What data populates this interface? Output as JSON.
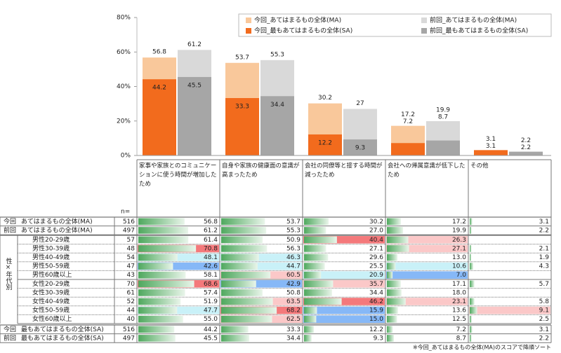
{
  "chart_data": {
    "type": "bar",
    "categories": [
      "家事や家族とのコミュニケーションに使う時間が増加したため",
      "自身や家族の健康面の意識が高まったため",
      "会社の同僚等と接する時間が減ったため",
      "会社への帰属意識が低下したため",
      "その他"
    ],
    "series": [
      {
        "name": "今回_あてはまるもの全体(MA)",
        "color": "#f9c89b",
        "values": [
          56.8,
          53.7,
          30.2,
          17.2,
          3.1
        ]
      },
      {
        "name": "前回_あてはまるもの全体(MA)",
        "color": "#d9d9d9",
        "values": [
          61.2,
          55.3,
          27.0,
          19.9,
          2.2
        ]
      },
      {
        "name": "今回_最もあてはまるもの全体(SA)",
        "color": "#f26b1d",
        "values": [
          44.2,
          33.3,
          12.2,
          7.2,
          3.1
        ]
      },
      {
        "name": "前回_最もあてはまるもの全体(SA)",
        "color": "#a6a6a6",
        "values": [
          45.5,
          34.4,
          9.3,
          8.7,
          2.2
        ]
      }
    ],
    "ylim": [
      0,
      80
    ],
    "yticks": [
      {
        "value": 0,
        "label": "0%"
      },
      {
        "value": 20,
        "label": "20%"
      },
      {
        "value": 40,
        "label": "40%"
      },
      {
        "value": 60,
        "label": "60%"
      },
      {
        "value": 80,
        "label": "80%"
      }
    ],
    "legend": "top-right"
  },
  "table": {
    "n_header": "n=",
    "group_label": "性×年代別",
    "rows": [
      {
        "group": "今回",
        "label": "あてはまるもの全体(MA)",
        "n": 516,
        "values": [
          56.8,
          53.7,
          30.2,
          17.2,
          3.1
        ],
        "value_labels": [
          "56.8",
          "53.7",
          "30.2",
          "17.2",
          "3.1"
        ]
      },
      {
        "group": "前回",
        "label": "あてはまるもの全体(MA)",
        "n": 497,
        "values": [
          61.2,
          55.3,
          27.0,
          19.9,
          2.2
        ],
        "value_labels": [
          "61.2",
          "55.3",
          "27.0",
          "19.9",
          "2.2"
        ]
      },
      {
        "label": "男性20-29歳",
        "n": 57,
        "values": [
          61.4,
          50.9,
          40.4,
          26.3,
          null
        ],
        "value_labels": [
          "61.4",
          "50.9",
          "40.4",
          "26.3",
          null
        ]
      },
      {
        "label": "男性30-39歳",
        "n": 48,
        "values": [
          70.8,
          56.3,
          27.1,
          27.1,
          2.1
        ],
        "value_labels": [
          "70.8",
          "56.3",
          "27.1",
          "27.1",
          "2.1"
        ]
      },
      {
        "label": "男性40-49歳",
        "n": 54,
        "values": [
          48.1,
          46.3,
          29.6,
          13.0,
          1.9
        ],
        "value_labels": [
          "48.1",
          "46.3",
          "29.6",
          "13.0",
          "1.9"
        ]
      },
      {
        "label": "男性50-59歳",
        "n": 47,
        "values": [
          42.6,
          44.7,
          25.5,
          10.6,
          4.3
        ],
        "value_labels": [
          "42.6",
          "44.7",
          "25.5",
          "10.6",
          "4.3"
        ]
      },
      {
        "label": "男性60歳以上",
        "n": 43,
        "values": [
          58.1,
          60.5,
          20.9,
          7.0,
          null
        ],
        "value_labels": [
          "58.1",
          "60.5",
          "20.9",
          "7.0",
          null
        ]
      },
      {
        "label": "女性20-29歳",
        "n": 70,
        "values": [
          68.6,
          42.9,
          35.7,
          17.1,
          5.7
        ],
        "value_labels": [
          "68.6",
          "42.9",
          "35.7",
          "17.1",
          "5.7"
        ]
      },
      {
        "label": "女性30-39歳",
        "n": 61,
        "values": [
          57.4,
          50.8,
          34.4,
          18.0,
          null
        ],
        "value_labels": [
          "57.4",
          "50.8",
          "34.4",
          "18.0",
          null
        ]
      },
      {
        "label": "女性40-49歳",
        "n": 52,
        "values": [
          51.9,
          63.5,
          46.2,
          23.1,
          5.8
        ],
        "value_labels": [
          "51.9",
          "63.5",
          "46.2",
          "23.1",
          "5.8"
        ]
      },
      {
        "label": "女性50-59歳",
        "n": 44,
        "values": [
          47.7,
          68.2,
          15.9,
          13.6,
          9.1
        ],
        "value_labels": [
          "47.7",
          "68.2",
          "15.9",
          "13.6",
          "9.1"
        ]
      },
      {
        "label": "女性60歳以上",
        "n": 40,
        "values": [
          55.0,
          62.5,
          15.0,
          12.5,
          2.5
        ],
        "value_labels": [
          "55.0",
          "62.5",
          "15.0",
          "12.5",
          "2.5"
        ]
      },
      {
        "group": "今回",
        "label": "最もあてはまるもの全体(SA)",
        "n": 516,
        "values": [
          44.2,
          33.3,
          12.2,
          7.2,
          3.1
        ],
        "value_labels": [
          "44.2",
          "33.3",
          "12.2",
          "7.2",
          "3.1"
        ]
      },
      {
        "group": "前回",
        "label": "最もあてはまるもの全体(SA)",
        "n": 497,
        "values": [
          45.5,
          34.4,
          9.3,
          8.7,
          2.2
        ],
        "value_labels": [
          "45.5",
          "34.4",
          "9.3",
          "8.7",
          "2.2"
        ]
      }
    ],
    "footnote": "※今回_あてはまるもの全体(MA)のスコアで降順ソート"
  }
}
